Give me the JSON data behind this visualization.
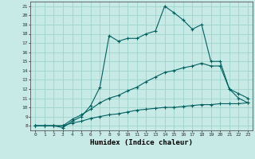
{
  "xlabel": "Humidex (Indice chaleur)",
  "bg_color": "#c8eae6",
  "grid_color": "#9fd4ce",
  "line_color": "#006060",
  "xlim": [
    -0.5,
    23.5
  ],
  "ylim": [
    7.5,
    21.5
  ],
  "xticks": [
    0,
    1,
    2,
    3,
    4,
    5,
    6,
    7,
    8,
    9,
    10,
    11,
    12,
    13,
    14,
    15,
    16,
    17,
    18,
    19,
    20,
    21,
    22,
    23
  ],
  "yticks": [
    8,
    9,
    10,
    11,
    12,
    13,
    14,
    15,
    16,
    17,
    18,
    19,
    20,
    21
  ],
  "line1_x": [
    0,
    1,
    2,
    3,
    4,
    5,
    6,
    7,
    8,
    9,
    10,
    11,
    12,
    13,
    14,
    15,
    16,
    17,
    18,
    19,
    20,
    21,
    22,
    23
  ],
  "line1_y": [
    8,
    8,
    8,
    7.8,
    8.5,
    9.0,
    10.2,
    12.2,
    17.8,
    17.2,
    17.5,
    17.5,
    18.0,
    18.3,
    21.0,
    20.3,
    19.5,
    18.5,
    19.0,
    15.0,
    15.0,
    12.0,
    11.0,
    10.5
  ],
  "line2_x": [
    0,
    1,
    2,
    3,
    4,
    5,
    6,
    7,
    8,
    9,
    10,
    11,
    12,
    13,
    14,
    15,
    16,
    17,
    18,
    19,
    20,
    21,
    22,
    23
  ],
  "line2_y": [
    8,
    8,
    8,
    8,
    8.7,
    9.2,
    9.8,
    10.5,
    11.0,
    11.3,
    11.8,
    12.2,
    12.8,
    13.3,
    13.8,
    14.0,
    14.3,
    14.5,
    14.8,
    14.5,
    14.5,
    12.0,
    11.5,
    11.0
  ],
  "line3_x": [
    0,
    1,
    2,
    3,
    4,
    5,
    6,
    7,
    8,
    9,
    10,
    11,
    12,
    13,
    14,
    15,
    16,
    17,
    18,
    19,
    20,
    21,
    22,
    23
  ],
  "line3_y": [
    8,
    8,
    8,
    8,
    8.3,
    8.5,
    8.8,
    9.0,
    9.2,
    9.3,
    9.5,
    9.7,
    9.8,
    9.9,
    10.0,
    10.0,
    10.1,
    10.2,
    10.3,
    10.3,
    10.4,
    10.4,
    10.4,
    10.5
  ]
}
